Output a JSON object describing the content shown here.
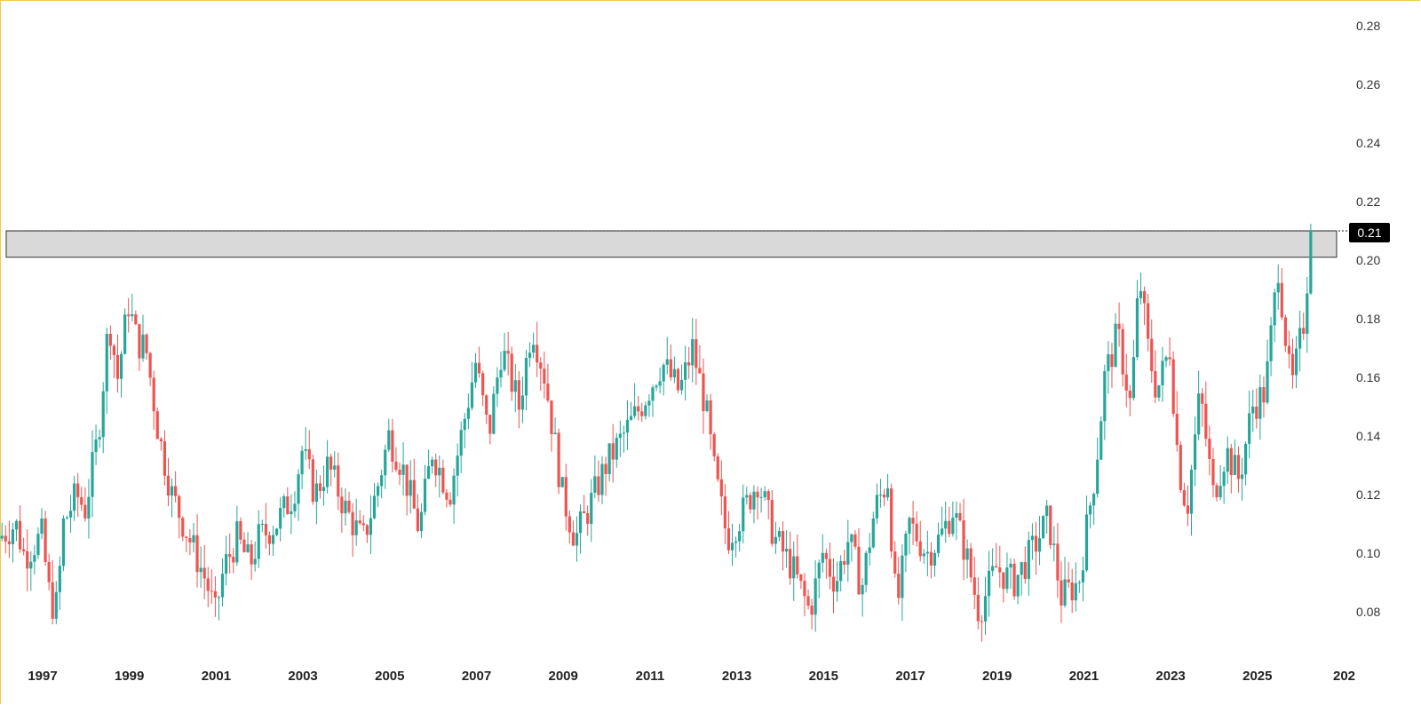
{
  "chart_data": {
    "type": "candlestick",
    "title": "",
    "xlabel": "",
    "ylabel": "",
    "ylim": [
      0.065,
      0.285
    ],
    "xlim": [
      1996.0,
      2027.0
    ],
    "y_ticks": [
      "0.28",
      "0.26",
      "0.24",
      "0.22",
      "0.20",
      "0.18",
      "0.16",
      "0.14",
      "0.12",
      "0.10",
      "0.08"
    ],
    "x_ticks": [
      "1997",
      "1999",
      "2001",
      "2003",
      "2005",
      "2007",
      "2009",
      "2011",
      "2013",
      "2015",
      "2017",
      "2019",
      "2021",
      "2023",
      "2025",
      "202"
    ],
    "last_price_label": "0.21",
    "last_price": 0.21,
    "resistance_zone": [
      0.201,
      0.21
    ],
    "colors": {
      "up": "#26a69a",
      "down": "#ef5350",
      "zone_fill": "#d9d9d9",
      "zone_stroke": "#333333",
      "price_tag": "#000000"
    },
    "key_points": [
      {
        "t": 1996.0,
        "v": 0.105
      },
      {
        "t": 1996.4,
        "v": 0.11
      },
      {
        "t": 1996.6,
        "v": 0.099
      },
      {
        "t": 1997.0,
        "v": 0.106
      },
      {
        "t": 1997.2,
        "v": 0.083
      },
      {
        "t": 1997.35,
        "v": 0.082
      },
      {
        "t": 1997.5,
        "v": 0.11
      },
      {
        "t": 1997.8,
        "v": 0.12
      },
      {
        "t": 1998.0,
        "v": 0.115
      },
      {
        "t": 1998.3,
        "v": 0.14
      },
      {
        "t": 1998.55,
        "v": 0.18
      },
      {
        "t": 1998.75,
        "v": 0.16
      },
      {
        "t": 1999.0,
        "v": 0.185
      },
      {
        "t": 1999.2,
        "v": 0.172
      },
      {
        "t": 1999.4,
        "v": 0.17
      },
      {
        "t": 1999.7,
        "v": 0.14
      },
      {
        "t": 2000.0,
        "v": 0.12
      },
      {
        "t": 2000.4,
        "v": 0.105
      },
      {
        "t": 2000.8,
        "v": 0.09
      },
      {
        "t": 2001.0,
        "v": 0.079
      },
      {
        "t": 2001.2,
        "v": 0.095
      },
      {
        "t": 2001.5,
        "v": 0.105
      },
      {
        "t": 2001.8,
        "v": 0.096
      },
      {
        "t": 2002.0,
        "v": 0.105
      },
      {
        "t": 2002.4,
        "v": 0.11
      },
      {
        "t": 2002.8,
        "v": 0.12
      },
      {
        "t": 2003.0,
        "v": 0.135
      },
      {
        "t": 2003.3,
        "v": 0.12
      },
      {
        "t": 2003.6,
        "v": 0.13
      },
      {
        "t": 2004.0,
        "v": 0.115
      },
      {
        "t": 2004.4,
        "v": 0.104
      },
      {
        "t": 2004.7,
        "v": 0.12
      },
      {
        "t": 2005.0,
        "v": 0.14
      },
      {
        "t": 2005.3,
        "v": 0.13
      },
      {
        "t": 2005.7,
        "v": 0.108
      },
      {
        "t": 2006.0,
        "v": 0.135
      },
      {
        "t": 2006.4,
        "v": 0.12
      },
      {
        "t": 2006.8,
        "v": 0.15
      },
      {
        "t": 2007.0,
        "v": 0.165
      },
      {
        "t": 2007.3,
        "v": 0.14
      },
      {
        "t": 2007.6,
        "v": 0.17
      },
      {
        "t": 2008.0,
        "v": 0.15
      },
      {
        "t": 2008.3,
        "v": 0.178
      },
      {
        "t": 2008.6,
        "v": 0.16
      },
      {
        "t": 2009.0,
        "v": 0.12
      },
      {
        "t": 2009.3,
        "v": 0.105
      },
      {
        "t": 2009.6,
        "v": 0.115
      },
      {
        "t": 2010.0,
        "v": 0.13
      },
      {
        "t": 2010.4,
        "v": 0.14
      },
      {
        "t": 2010.8,
        "v": 0.15
      },
      {
        "t": 2011.3,
        "v": 0.165
      },
      {
        "t": 2011.7,
        "v": 0.155
      },
      {
        "t": 2012.0,
        "v": 0.17
      },
      {
        "t": 2012.3,
        "v": 0.15
      },
      {
        "t": 2012.5,
        "v": 0.128
      },
      {
        "t": 2012.8,
        "v": 0.105
      },
      {
        "t": 2013.2,
        "v": 0.115
      },
      {
        "t": 2013.5,
        "v": 0.125
      },
      {
        "t": 2013.9,
        "v": 0.105
      },
      {
        "t": 2014.3,
        "v": 0.095
      },
      {
        "t": 2014.7,
        "v": 0.08
      },
      {
        "t": 2015.0,
        "v": 0.1
      },
      {
        "t": 2015.3,
        "v": 0.09
      },
      {
        "t": 2015.6,
        "v": 0.105
      },
      {
        "t": 2015.9,
        "v": 0.088
      },
      {
        "t": 2016.2,
        "v": 0.115
      },
      {
        "t": 2016.5,
        "v": 0.125
      },
      {
        "t": 2016.7,
        "v": 0.08
      },
      {
        "t": 2017.0,
        "v": 0.11
      },
      {
        "t": 2017.4,
        "v": 0.1
      },
      {
        "t": 2017.7,
        "v": 0.105
      },
      {
        "t": 2018.0,
        "v": 0.115
      },
      {
        "t": 2018.3,
        "v": 0.1
      },
      {
        "t": 2018.6,
        "v": 0.08
      },
      {
        "t": 2019.0,
        "v": 0.095
      },
      {
        "t": 2019.4,
        "v": 0.09
      },
      {
        "t": 2019.8,
        "v": 0.1
      },
      {
        "t": 2020.2,
        "v": 0.112
      },
      {
        "t": 2020.5,
        "v": 0.085
      },
      {
        "t": 2020.9,
        "v": 0.09
      },
      {
        "t": 2021.1,
        "v": 0.11
      },
      {
        "t": 2021.3,
        "v": 0.13
      },
      {
        "t": 2021.5,
        "v": 0.16
      },
      {
        "t": 2021.8,
        "v": 0.175
      },
      {
        "t": 2022.1,
        "v": 0.15
      },
      {
        "t": 2022.3,
        "v": 0.195
      },
      {
        "t": 2022.5,
        "v": 0.17
      },
      {
        "t": 2022.7,
        "v": 0.155
      },
      {
        "t": 2023.0,
        "v": 0.17
      },
      {
        "t": 2023.2,
        "v": 0.13
      },
      {
        "t": 2023.4,
        "v": 0.115
      },
      {
        "t": 2023.7,
        "v": 0.155
      },
      {
        "t": 2024.0,
        "v": 0.12
      },
      {
        "t": 2024.3,
        "v": 0.135
      },
      {
        "t": 2024.6,
        "v": 0.125
      },
      {
        "t": 2024.9,
        "v": 0.15
      },
      {
        "t": 2025.2,
        "v": 0.155
      },
      {
        "t": 2025.5,
        "v": 0.198
      },
      {
        "t": 2025.8,
        "v": 0.155
      },
      {
        "t": 2026.1,
        "v": 0.18
      },
      {
        "t": 2026.25,
        "v": 0.21
      }
    ]
  }
}
